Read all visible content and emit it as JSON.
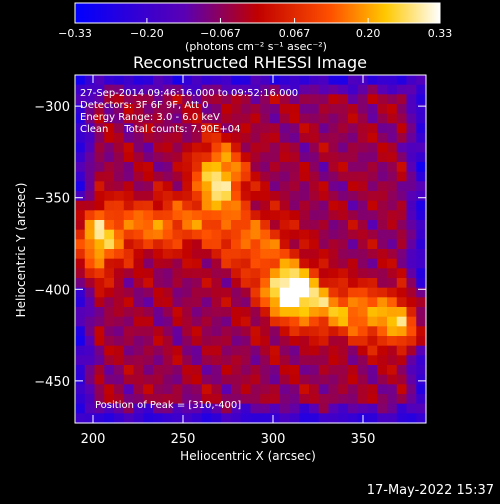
{
  "colorbar": {
    "ticks": [
      "-0.33",
      "-0.20",
      "-0.067",
      "0.067",
      "0.20",
      "0.33"
    ],
    "units_label": "(photons cm⁻² s⁻¹ asec⁻²)"
  },
  "plot": {
    "title": "Reconstructed RHESSI Image",
    "annotations": [
      "27-Sep-2014 09:46:16.000 to 09:52:16.000",
      "Detectors: 3F 6F 9F, Att 0",
      "Energy Range: 3.0 - 6.0 keV",
      "Clean     Total counts: 7.90E+04"
    ],
    "peak_label": "Position of Peak = [310,-400]"
  },
  "footer": {
    "timestamp": "17-May-2022 15:37"
  },
  "chart_data": {
    "type": "heatmap",
    "title": "Reconstructed RHESSI Image",
    "xlabel": "Heliocentric X (arcsec)",
    "ylabel": "Heliocentric Y (arcsec)",
    "x_ticks": [
      200,
      250,
      300,
      350
    ],
    "y_ticks": [
      -300,
      -350,
      -400,
      -450
    ],
    "xlim": [
      190,
      385
    ],
    "ylim": [
      -473,
      -283
    ],
    "colorbar_range": [
      -0.33,
      0.33
    ],
    "colormap": "blue-purple-red-yellow-white",
    "peak": {
      "x": 310,
      "y": -400
    },
    "sources": [
      {
        "x": 310,
        "y": -400,
        "amp": 1.0,
        "sx": 11,
        "sy": 10
      },
      {
        "x": 270,
        "y": -340,
        "amp": 0.85,
        "sx": 10,
        "sy": 14
      },
      {
        "x": 197,
        "y": -375,
        "amp": 0.8,
        "sx": 12,
        "sy": 14
      },
      {
        "x": 237,
        "y": -365,
        "amp": 0.55,
        "sx": 22,
        "sy": 10
      },
      {
        "x": 340,
        "y": -412,
        "amp": 0.6,
        "sx": 22,
        "sy": 10
      },
      {
        "x": 375,
        "y": -420,
        "amp": 0.55,
        "sx": 14,
        "sy": 10
      },
      {
        "x": 290,
        "y": -375,
        "amp": 0.5,
        "sx": 14,
        "sy": 12
      }
    ]
  }
}
